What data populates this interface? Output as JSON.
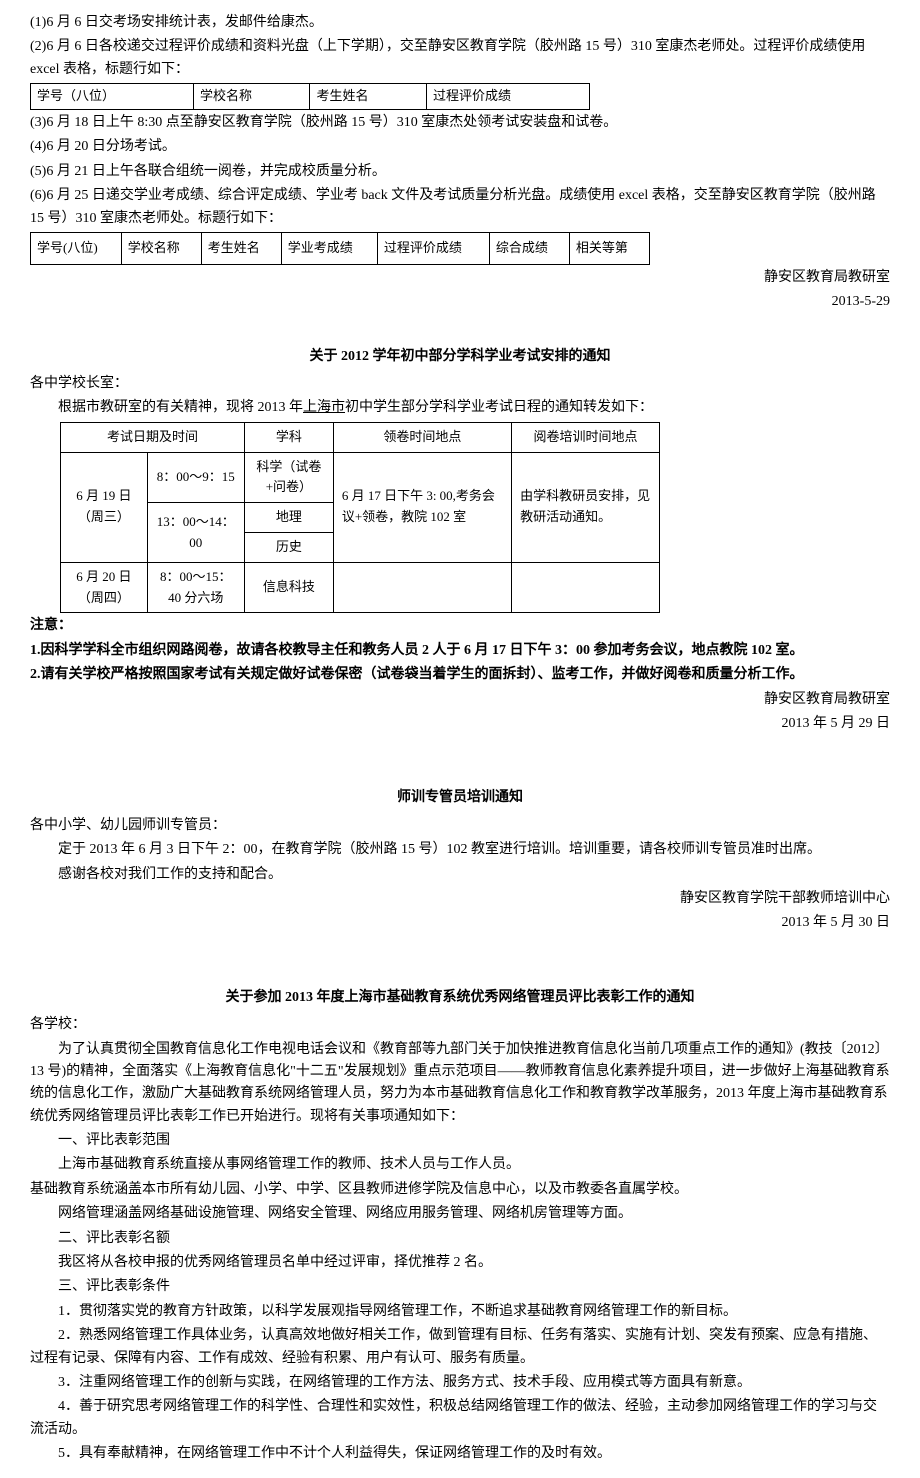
{
  "p1": "(1)6 月 6 日交考场安排统计表，发邮件给康杰。",
  "p2": "(2)6 月 6 日各校递交过程评价成绩和资料光盘（上下学期），交至静安区教育学院（胶州路 15 号）310 室康杰老师处。过程评价成绩使用 excel 表格，标题行如下：",
  "t1r1c1": "学号（八位）",
  "t1r1c2": "学校名称",
  "t1r1c3": "考生姓名",
  "t1r1c4": "过程评价成绩",
  "p3": "(3)6 月 18 日上午 8:30 点至静安区教育学院（胶州路 15 号）310 室康杰处领考试安装盘和试卷。",
  "p4": "(4)6 月 20 日分场考试。",
  "p5": "(5)6 月 21 日上午各联合组统一阅卷，并完成校质量分析。",
  "p6": "(6)6 月 25 日递交学业考成绩、综合评定成绩、学业考 back 文件及考试质量分析光盘。成绩使用 excel 表格，交至静安区教育学院（胶州路 15 号）310 室康杰老师处。标题行如下：",
  "t2r1c1": "学号(八位)",
  "t2r1c2": "学校名称",
  "t2r1c3": "考生姓名",
  "t2r1c4": "学业考成绩",
  "t2r1c5": "过程评价成绩",
  "t2r1c6": "综合成绩",
  "t2r1c7": "相关等第",
  "sig1a": "静安区教育局教研室",
  "sig1b": "2013-5-29",
  "title2": "关于 2012 学年初中部分学科学业考试安排的通知",
  "p7": "各中学校长室：",
  "p8a": "根据市教研室的有关精神，现将 2013 年",
  "p8u": "上海市",
  "p8b": "初中学生部分学科学业考试日程的通知转发如下：",
  "t3h1": "考试日期及时间",
  "t3h2": "学科",
  "t3h3": "领卷时间地点",
  "t3h4": "阅卷培训时间地点",
  "t3r1c1": "6 月 19 日（周三）",
  "t3r1c2a": "8：00～9：15",
  "t3r1c2b": "13：00～14：00",
  "t3r1c3a": "科学（试卷+问卷）",
  "t3r1c3b": "地理",
  "t3r1c3c": "历史",
  "t3r1c4": "6 月 17 日下午 3: 00,考务会议+领卷，教院 102 室",
  "t3r1c5": "由学科教研员安排，见教研活动通知。",
  "t3r2c1": "6 月 20 日（周四）",
  "t3r2c2": "8：00～15：40 分六场",
  "t3r2c3": "信息科技",
  "note_h": "注意：",
  "note1": "1.因科学学科全市组织网路阅卷，故请各校教导主任和教务人员 2 人于 6 月 17 日下午 3：00 参加考务会议，地点教院 102 室。",
  "note2": "2.请有关学校严格按照国家考试有关规定做好试卷保密（试卷袋当着学生的面拆封）、监考工作，并做好阅卷和质量分析工作。",
  "sig2a": "静安区教育局教研室",
  "sig2b": "2013 年 5 月 29 日",
  "title3": "师训专管员培训通知",
  "p9": "各中小学、幼儿园师训专管员：",
  "p10": "定于 2013 年 6 月 3 日下午 2：00，在教育学院（胶州路 15 号）102 教室进行培训。培训重要，请各校师训专管员准时出席。",
  "p11": "感谢各校对我们工作的支持和配合。",
  "sig3a": "静安区教育学院干部教师培训中心",
  "sig3b": "2013 年 5 月 30 日",
  "title4": "关于参加 2013 年度上海市基础教育系统优秀网络管理员评比表彰工作的通知",
  "p12": "各学校：",
  "p13": "为了认真贯彻全国教育信息化工作电视电话会议和《教育部等九部门关于加快推进教育信息化当前几项重点工作的通知》(教技〔2012〕13 号)的精神，全面落实《上海教育信息化\"十二五\"发展规划》重点示范项目——教师教育信息化素养提升项目，进一步做好上海基础教育系统的信息化工作，激励广大基础教育系统网络管理人员，努力为本市基础教育信息化工作和教育教学改革服务，2013 年度上海市基础教育系统优秀网络管理员评比表彰工作已开始进行。现将有关事项通知如下：",
  "p14": "一、评比表彰范围",
  "p15": "上海市基础教育系统直接从事网络管理工作的教师、技术人员与工作人员。",
  "p16": "基础教育系统涵盖本市所有幼儿园、小学、中学、区县教师进修学院及信息中心，以及市教委各直属学校。",
  "p17": "网络管理涵盖网络基础设施管理、网络安全管理、网络应用服务管理、网络机房管理等方面。",
  "p18": "二、评比表彰名额",
  "p19": "我区将从各校申报的优秀网络管理员名单中经过评审，择优推荐 2 名。",
  "p20": "三、评比表彰条件",
  "p21": "1．贯彻落实党的教育方针政策，以科学发展观指导网络管理工作，不断追求基础教育网络管理工作的新目标。",
  "p22": "2．熟悉网络管理工作具体业务，认真高效地做好相关工作，做到管理有目标、任务有落实、实施有计划、突发有预案、应急有措施、过程有记录、保障有内容、工作有成效、经验有积累、用户有认可、服务有质量。",
  "p23": "3．注重网络管理工作的创新与实践，在网络管理的工作方法、服务方式、技术手段、应用模式等方面具有新意。",
  "p24": "4．善于研究思考网络管理工作的科学性、合理性和实效性，积极总结网络管理工作的做法、经验，主动参加网络管理工作的学习与交流活动。",
  "p25": "5．具有奉献精神，在网络管理工作中不计个人利益得失，保证网络管理工作的及时有效。"
}
